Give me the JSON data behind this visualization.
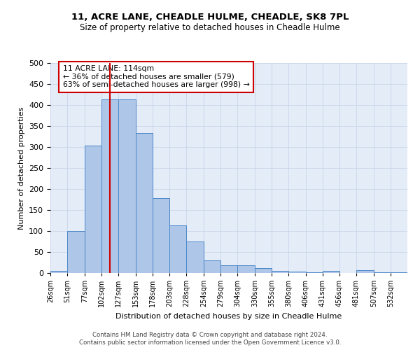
{
  "title": "11, ACRE LANE, CHEADLE HULME, CHEADLE, SK8 7PL",
  "subtitle": "Size of property relative to detached houses in Cheadle Hulme",
  "xlabel": "Distribution of detached houses by size in Cheadle Hulme",
  "ylabel": "Number of detached properties",
  "bin_labels": [
    "26sqm",
    "51sqm",
    "77sqm",
    "102sqm",
    "127sqm",
    "153sqm",
    "178sqm",
    "203sqm",
    "228sqm",
    "254sqm",
    "279sqm",
    "304sqm",
    "330sqm",
    "355sqm",
    "380sqm",
    "406sqm",
    "431sqm",
    "456sqm",
    "481sqm",
    "507sqm",
    "532sqm"
  ],
  "bar_heights": [
    5,
    100,
    303,
    413,
    413,
    333,
    178,
    113,
    75,
    30,
    18,
    18,
    12,
    5,
    4,
    2,
    5,
    0,
    7,
    2,
    1
  ],
  "bar_color": "#aec6e8",
  "bar_edge_color": "#4a86c8",
  "vline_x": 114,
  "vline_color": "#cc0000",
  "annotation_text": "11 ACRE LANE: 114sqm\n← 36% of detached houses are smaller (579)\n63% of semi-detached houses are larger (998) →",
  "annotation_box_color": "#ffffff",
  "annotation_box_edge_color": "#cc0000",
  "footer_text": "Contains HM Land Registry data © Crown copyright and database right 2024.\nContains public sector information licensed under the Open Government Licence v3.0.",
  "grid_color": "#c8d4e8",
  "background_color": "#e4ecf8",
  "ylim": [
    0,
    500
  ],
  "bin_starts": [
    26,
    51,
    77,
    102,
    127,
    153,
    178,
    203,
    228,
    254,
    279,
    304,
    330,
    355,
    380,
    406,
    431,
    456,
    481,
    507,
    532
  ],
  "bin_widths": [
    25,
    26,
    25,
    25,
    26,
    25,
    25,
    25,
    26,
    25,
    25,
    26,
    25,
    25,
    26,
    25,
    25,
    25,
    26,
    25,
    25
  ],
  "xlim_left": 26,
  "xlim_right": 557
}
